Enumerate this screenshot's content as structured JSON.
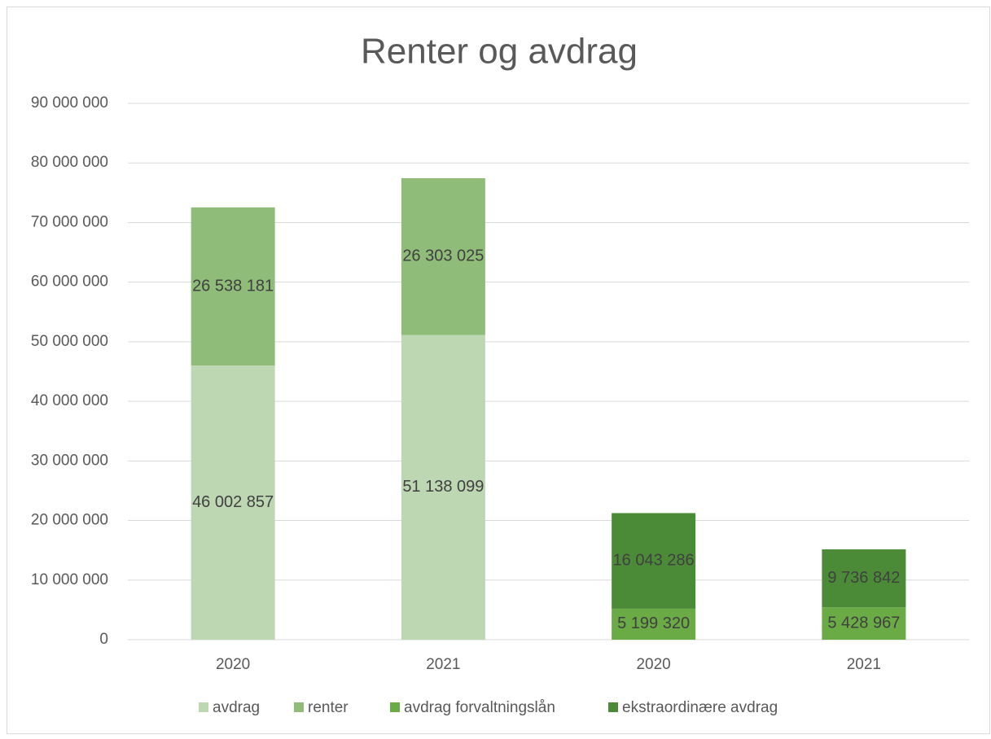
{
  "chart_data": {
    "type": "stacked_bar",
    "title": "Renter og avdrag",
    "categories": [
      "2020",
      "2021",
      "2020",
      "2021"
    ],
    "series": [
      {
        "name": "avdrag",
        "color": "#bdd7b3",
        "values": [
          46002857,
          51138099,
          null,
          null
        ],
        "value_labels": [
          "46 002 857",
          "51 138 099",
          null,
          null
        ]
      },
      {
        "name": "renter",
        "color": "#8fbc78",
        "values": [
          26538181,
          26303025,
          null,
          null
        ],
        "value_labels": [
          "26 538 181",
          "26 303 025",
          null,
          null
        ]
      },
      {
        "name": "avdrag forvaltningslån",
        "color": "#6aab46",
        "values": [
          null,
          null,
          5199320,
          5428967
        ],
        "value_labels": [
          null,
          null,
          "5 199 320",
          "5 428 967"
        ]
      },
      {
        "name": "ekstraordinære avdrag",
        "color": "#4b8b37",
        "values": [
          null,
          null,
          16043286,
          9736842
        ],
        "value_labels": [
          null,
          null,
          "16 043 286",
          "9 736 842"
        ]
      }
    ],
    "ylim": [
      0,
      90000000
    ],
    "yticks": [
      0,
      {
        "value": 10000000,
        "label": "10 000 000"
      },
      {
        "value": 20000000,
        "label": "20 000 000"
      },
      {
        "value": 30000000,
        "label": "30 000 000"
      },
      {
        "value": 40000000,
        "label": "40 000 000"
      },
      {
        "value": 50000000,
        "label": "50 000 000"
      },
      {
        "value": 60000000,
        "label": "60 000 000"
      },
      {
        "value": 70000000,
        "label": "70 000 000"
      },
      {
        "value": 80000000,
        "label": "80 000 000"
      },
      {
        "value": 90000000,
        "label": "90 000 000"
      }
    ],
    "grid": true,
    "legend": "bottom"
  }
}
